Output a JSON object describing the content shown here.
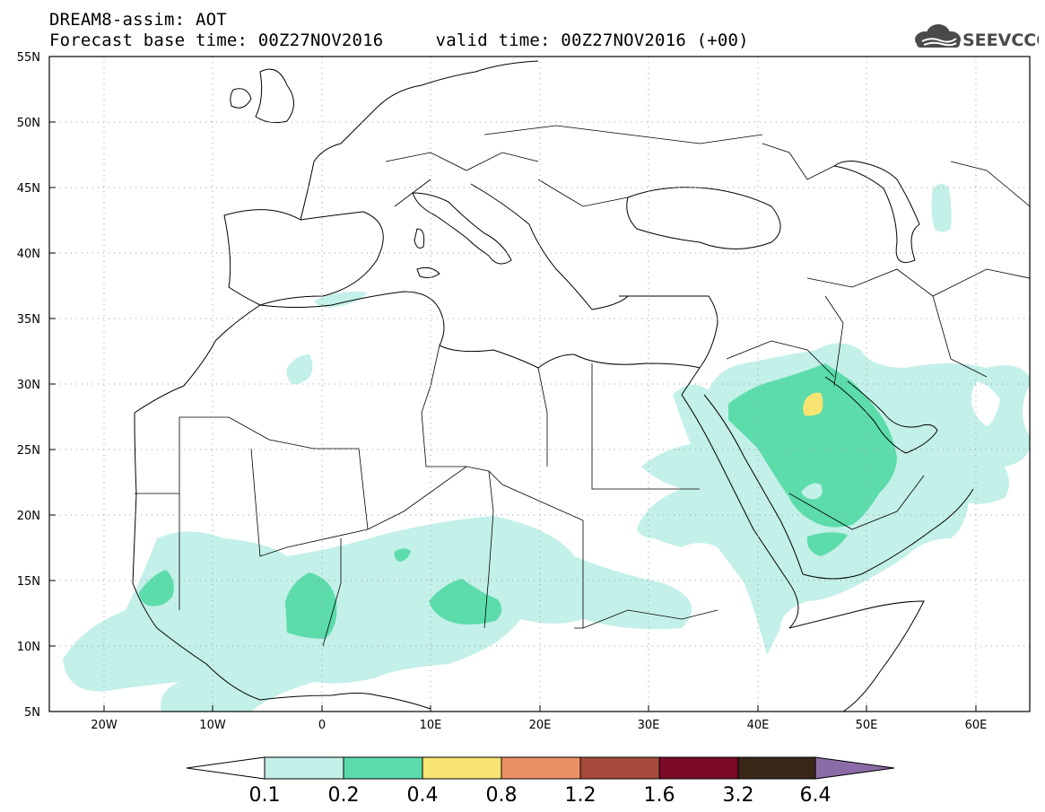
{
  "header": {
    "title_line1": "DREAM8-assim: AOT",
    "title_line2": "Forecast base time: 00Z27NOV2016     valid time: 00Z27NOV2016 (+00)",
    "logo_text": "SEEVCCC"
  },
  "map": {
    "projection": "lat-lon",
    "lon_range": [
      -25,
      65
    ],
    "lat_range": [
      5,
      55
    ],
    "grid": "dotted",
    "lat_ticks": [
      "55N",
      "50N",
      "45N",
      "40N",
      "35N",
      "30N",
      "25N",
      "20N",
      "15N",
      "10N",
      "5N"
    ],
    "lon_ticks": [
      "20W",
      "10W",
      "0",
      "10E",
      "20E",
      "30E",
      "40E",
      "50E",
      "60E"
    ]
  },
  "colorbar": {
    "labels": [
      "0.1",
      "0.2",
      "0.4",
      "0.8",
      "1.2",
      "1.6",
      "3.2",
      "6.4"
    ],
    "colors": [
      "#ffffff",
      "#c3f0e8",
      "#5cdcab",
      "#f7e473",
      "#eb9166",
      "#a74a3b",
      "#7a0a28",
      "#3a2718",
      "#8b6ba8"
    ]
  }
}
